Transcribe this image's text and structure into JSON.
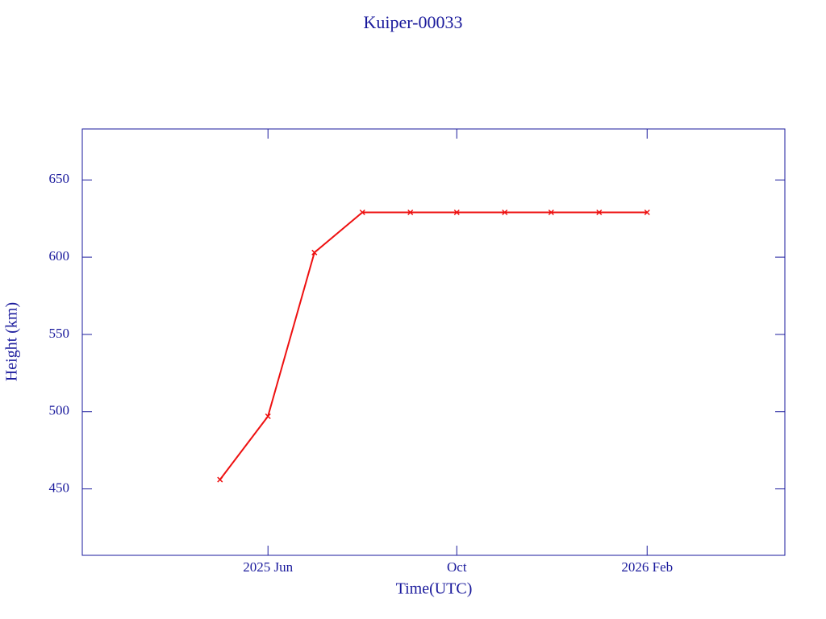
{
  "chart_data": {
    "type": "line",
    "title": "Kuiper-00033",
    "x_label": "Time(UTC)",
    "y_label": "Height (km)",
    "x": [
      "2025-05",
      "2025-06",
      "2025-07",
      "2025-08",
      "2025-09",
      "2025-10",
      "2025-11",
      "2025-12",
      "2026-01",
      "2026-02"
    ],
    "values": [
      456,
      497,
      603,
      629,
      629,
      629,
      629,
      629,
      629,
      629
    ],
    "color": "#ee1111",
    "xlim": [
      "2025-02",
      "2026-05"
    ],
    "xticks": [
      {
        "value": "2025-06",
        "label": "2025 Jun"
      },
      {
        "value": "2025-10",
        "label": "Oct"
      },
      {
        "value": "2026-02",
        "label": "2026 Feb"
      }
    ],
    "ylim": [
      407,
      683
    ],
    "yticks": [
      450,
      500,
      550,
      600,
      650
    ],
    "grid": false
  }
}
